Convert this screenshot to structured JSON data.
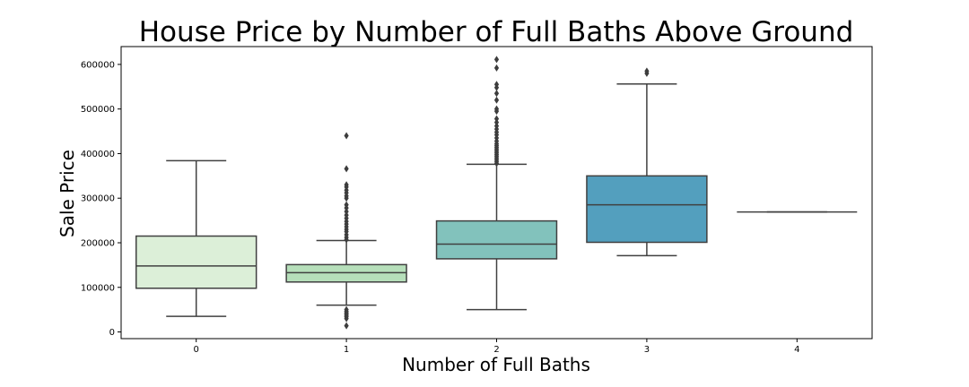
{
  "chart_data": {
    "type": "box",
    "title": "House Price by Number of Full Baths Above Ground",
    "xlabel": "Number of Full Baths",
    "ylabel": "Sale Price",
    "ylim": [
      -15000,
      640000
    ],
    "yticks": [
      0,
      100000,
      200000,
      300000,
      400000,
      500000,
      600000
    ],
    "ytick_labels": [
      "0",
      "100000",
      "200000",
      "300000",
      "400000",
      "500000",
      "600000"
    ],
    "grid": false,
    "legend": "none",
    "categories": [
      "0",
      "1",
      "2",
      "3",
      "4"
    ],
    "boxes": [
      {
        "category": "0",
        "color": "#dcefd8",
        "whislo": 35000,
        "q1": 98000,
        "med": 148000,
        "q3": 215000,
        "whishi": 384000,
        "fliers": []
      },
      {
        "category": "1",
        "color": "#b6dfba",
        "whislo": 60000,
        "q1": 112000,
        "med": 133000,
        "q3": 151000,
        "whishi": 205000,
        "fliers": [
          14000,
          30000,
          34000,
          37000,
          40000,
          43000,
          46000,
          50000,
          207000,
          212000,
          218000,
          225000,
          230000,
          236000,
          242000,
          248000,
          255000,
          262000,
          270000,
          278000,
          285000,
          300000,
          305000,
          312000,
          318000,
          325000,
          330000,
          366000,
          440000
        ]
      },
      {
        "category": "2",
        "color": "#82c2bc",
        "whislo": 50000,
        "q1": 164000,
        "med": 197000,
        "q3": 249000,
        "whishi": 376000,
        "fliers": [
          378000,
          382000,
          386000,
          390000,
          394000,
          398000,
          402000,
          406000,
          410000,
          414000,
          418000,
          422000,
          428000,
          435000,
          442000,
          448000,
          455000,
          462000,
          470000,
          478000,
          495000,
          500000,
          520000,
          535000,
          548000,
          555000,
          592000,
          611000
        ]
      },
      {
        "category": "3",
        "color": "#539fbe",
        "whislo": 171000,
        "q1": 201000,
        "med": 285000,
        "q3": 350000,
        "whishi": 556000,
        "fliers": [
          580000,
          585000
        ]
      },
      {
        "category": "4",
        "color": "#3d7fb3",
        "whislo": 269000,
        "q1": 269000,
        "med": 269000,
        "q3": 269000,
        "whishi": 269000,
        "fliers": []
      }
    ]
  }
}
